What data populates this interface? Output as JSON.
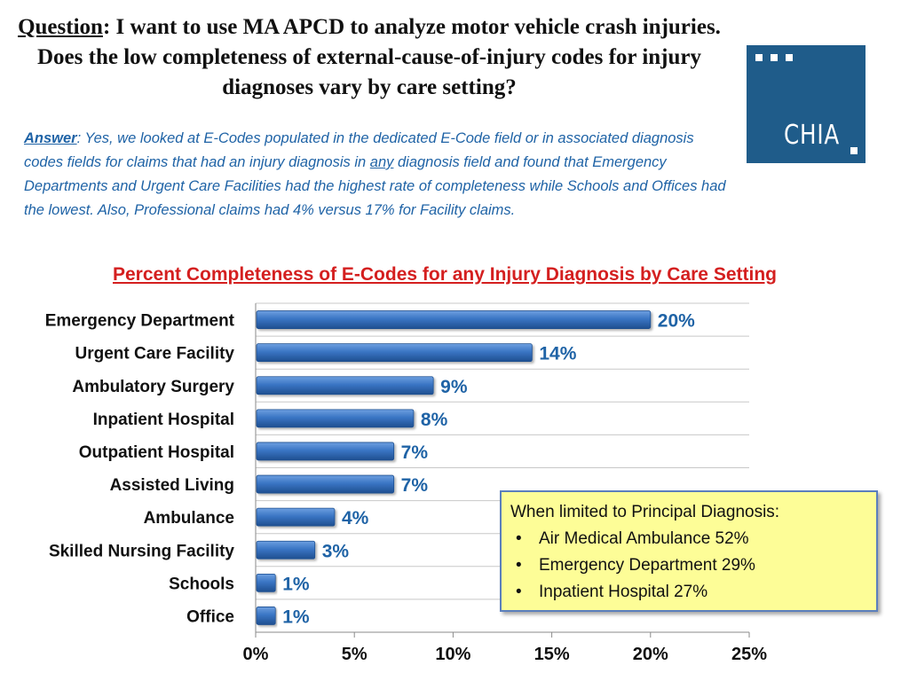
{
  "question": {
    "label": "Question",
    "text": ": I want to use MA APCD to analyze motor vehicle crash injuries.  Does the low completeness of external-cause-of-injury codes for injury diagnoses vary by care setting?"
  },
  "logo": {
    "text": "CHIA"
  },
  "answer": {
    "label": "Answer",
    "text_before": ": Yes, we looked at E-Codes populated in the dedicated E-Code field or in associated diagnosis codes fields for claims that had an injury diagnosis in ",
    "emphasis": "any",
    "text_after": " diagnosis field and found that Emergency Departments and Urgent Care Facilities had the highest rate of completeness while Schools and Offices had the lowest. Also, Professional claims had 4% versus 17% for Facility claims."
  },
  "chart_data": {
    "type": "bar",
    "orientation": "horizontal",
    "title": "Percent Completeness of E-Codes for any Injury Diagnosis by Care Setting",
    "categories": [
      "Emergency Department",
      "Urgent Care Facility",
      "Ambulatory Surgery",
      "Inpatient Hospital",
      "Outpatient Hospital",
      "Assisted Living",
      "Ambulance",
      "Skilled Nursing Facility",
      "Schools",
      "Office"
    ],
    "values": [
      20,
      14,
      9,
      8,
      7,
      7,
      4,
      3,
      1,
      1
    ],
    "data_labels": [
      "20%",
      "14%",
      "9%",
      "8%",
      "7%",
      "7%",
      "4%",
      "3%",
      "1%",
      "1%"
    ],
    "xlim": [
      0,
      25
    ],
    "xticks": [
      0,
      5,
      10,
      15,
      20,
      25
    ],
    "xtick_labels": [
      "0%",
      "5%",
      "10%",
      "15%",
      "20%",
      "25%"
    ],
    "xlabel": "",
    "ylabel": "",
    "grid": true,
    "colors": {
      "bar": "#3a75c4",
      "bar_light": "#6d9fe0",
      "bar_dark": "#1f4f90",
      "label": "#1f63a6",
      "grid": "#c8c8c8"
    }
  },
  "callout": {
    "heading": "When limited to Principal  Diagnosis:",
    "items": [
      "Air Medical Ambulance 52%",
      "Emergency Department 29%",
      "Inpatient  Hospital 27%"
    ]
  }
}
